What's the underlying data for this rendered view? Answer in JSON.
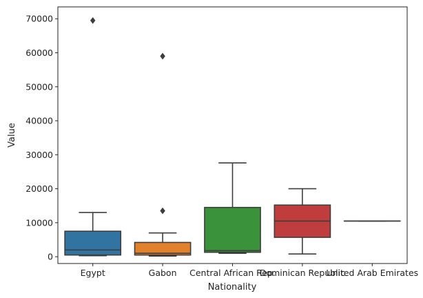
{
  "chart_data": {
    "type": "box",
    "xlabel": "Nationality",
    "ylabel": "Value",
    "ylim": [
      -2000,
      73500
    ],
    "yticks": [
      0,
      10000,
      20000,
      30000,
      40000,
      50000,
      60000,
      70000
    ],
    "ytick_labels": [
      "0",
      "10000",
      "20000",
      "30000",
      "40000",
      "50000",
      "60000",
      "70000"
    ],
    "grid": false,
    "legend": "none",
    "categories": [
      "Egypt",
      "Gabon",
      "Central African Rep.",
      "Dominican Republic",
      "United Arab Emirates"
    ],
    "boxes": [
      {
        "category": "Egypt",
        "color": "#3274a1",
        "whisker_low": 300,
        "q1": 500,
        "median": 2000,
        "q3": 7500,
        "whisker_high": 13000,
        "outliers": [
          69500
        ]
      },
      {
        "category": "Gabon",
        "color": "#e1812c",
        "whisker_low": 200,
        "q1": 500,
        "median": 1000,
        "q3": 4200,
        "whisker_high": 7000,
        "outliers": [
          13500,
          59000
        ]
      },
      {
        "category": "Central African Rep.",
        "color": "#3a923a",
        "whisker_low": 1000,
        "q1": 1300,
        "median": 1800,
        "q3": 14500,
        "whisker_high": 27600,
        "outliers": []
      },
      {
        "category": "Dominican Republic",
        "color": "#c03d3e",
        "whisker_low": 800,
        "q1": 5700,
        "median": 10500,
        "q3": 15200,
        "whisker_high": 20000,
        "outliers": []
      },
      {
        "category": "United Arab Emirates",
        "color": "#9372b2",
        "whisker_low": 10500,
        "q1": 10500,
        "median": 10500,
        "q3": 10500,
        "whisker_high": 10500,
        "outliers": []
      }
    ]
  }
}
